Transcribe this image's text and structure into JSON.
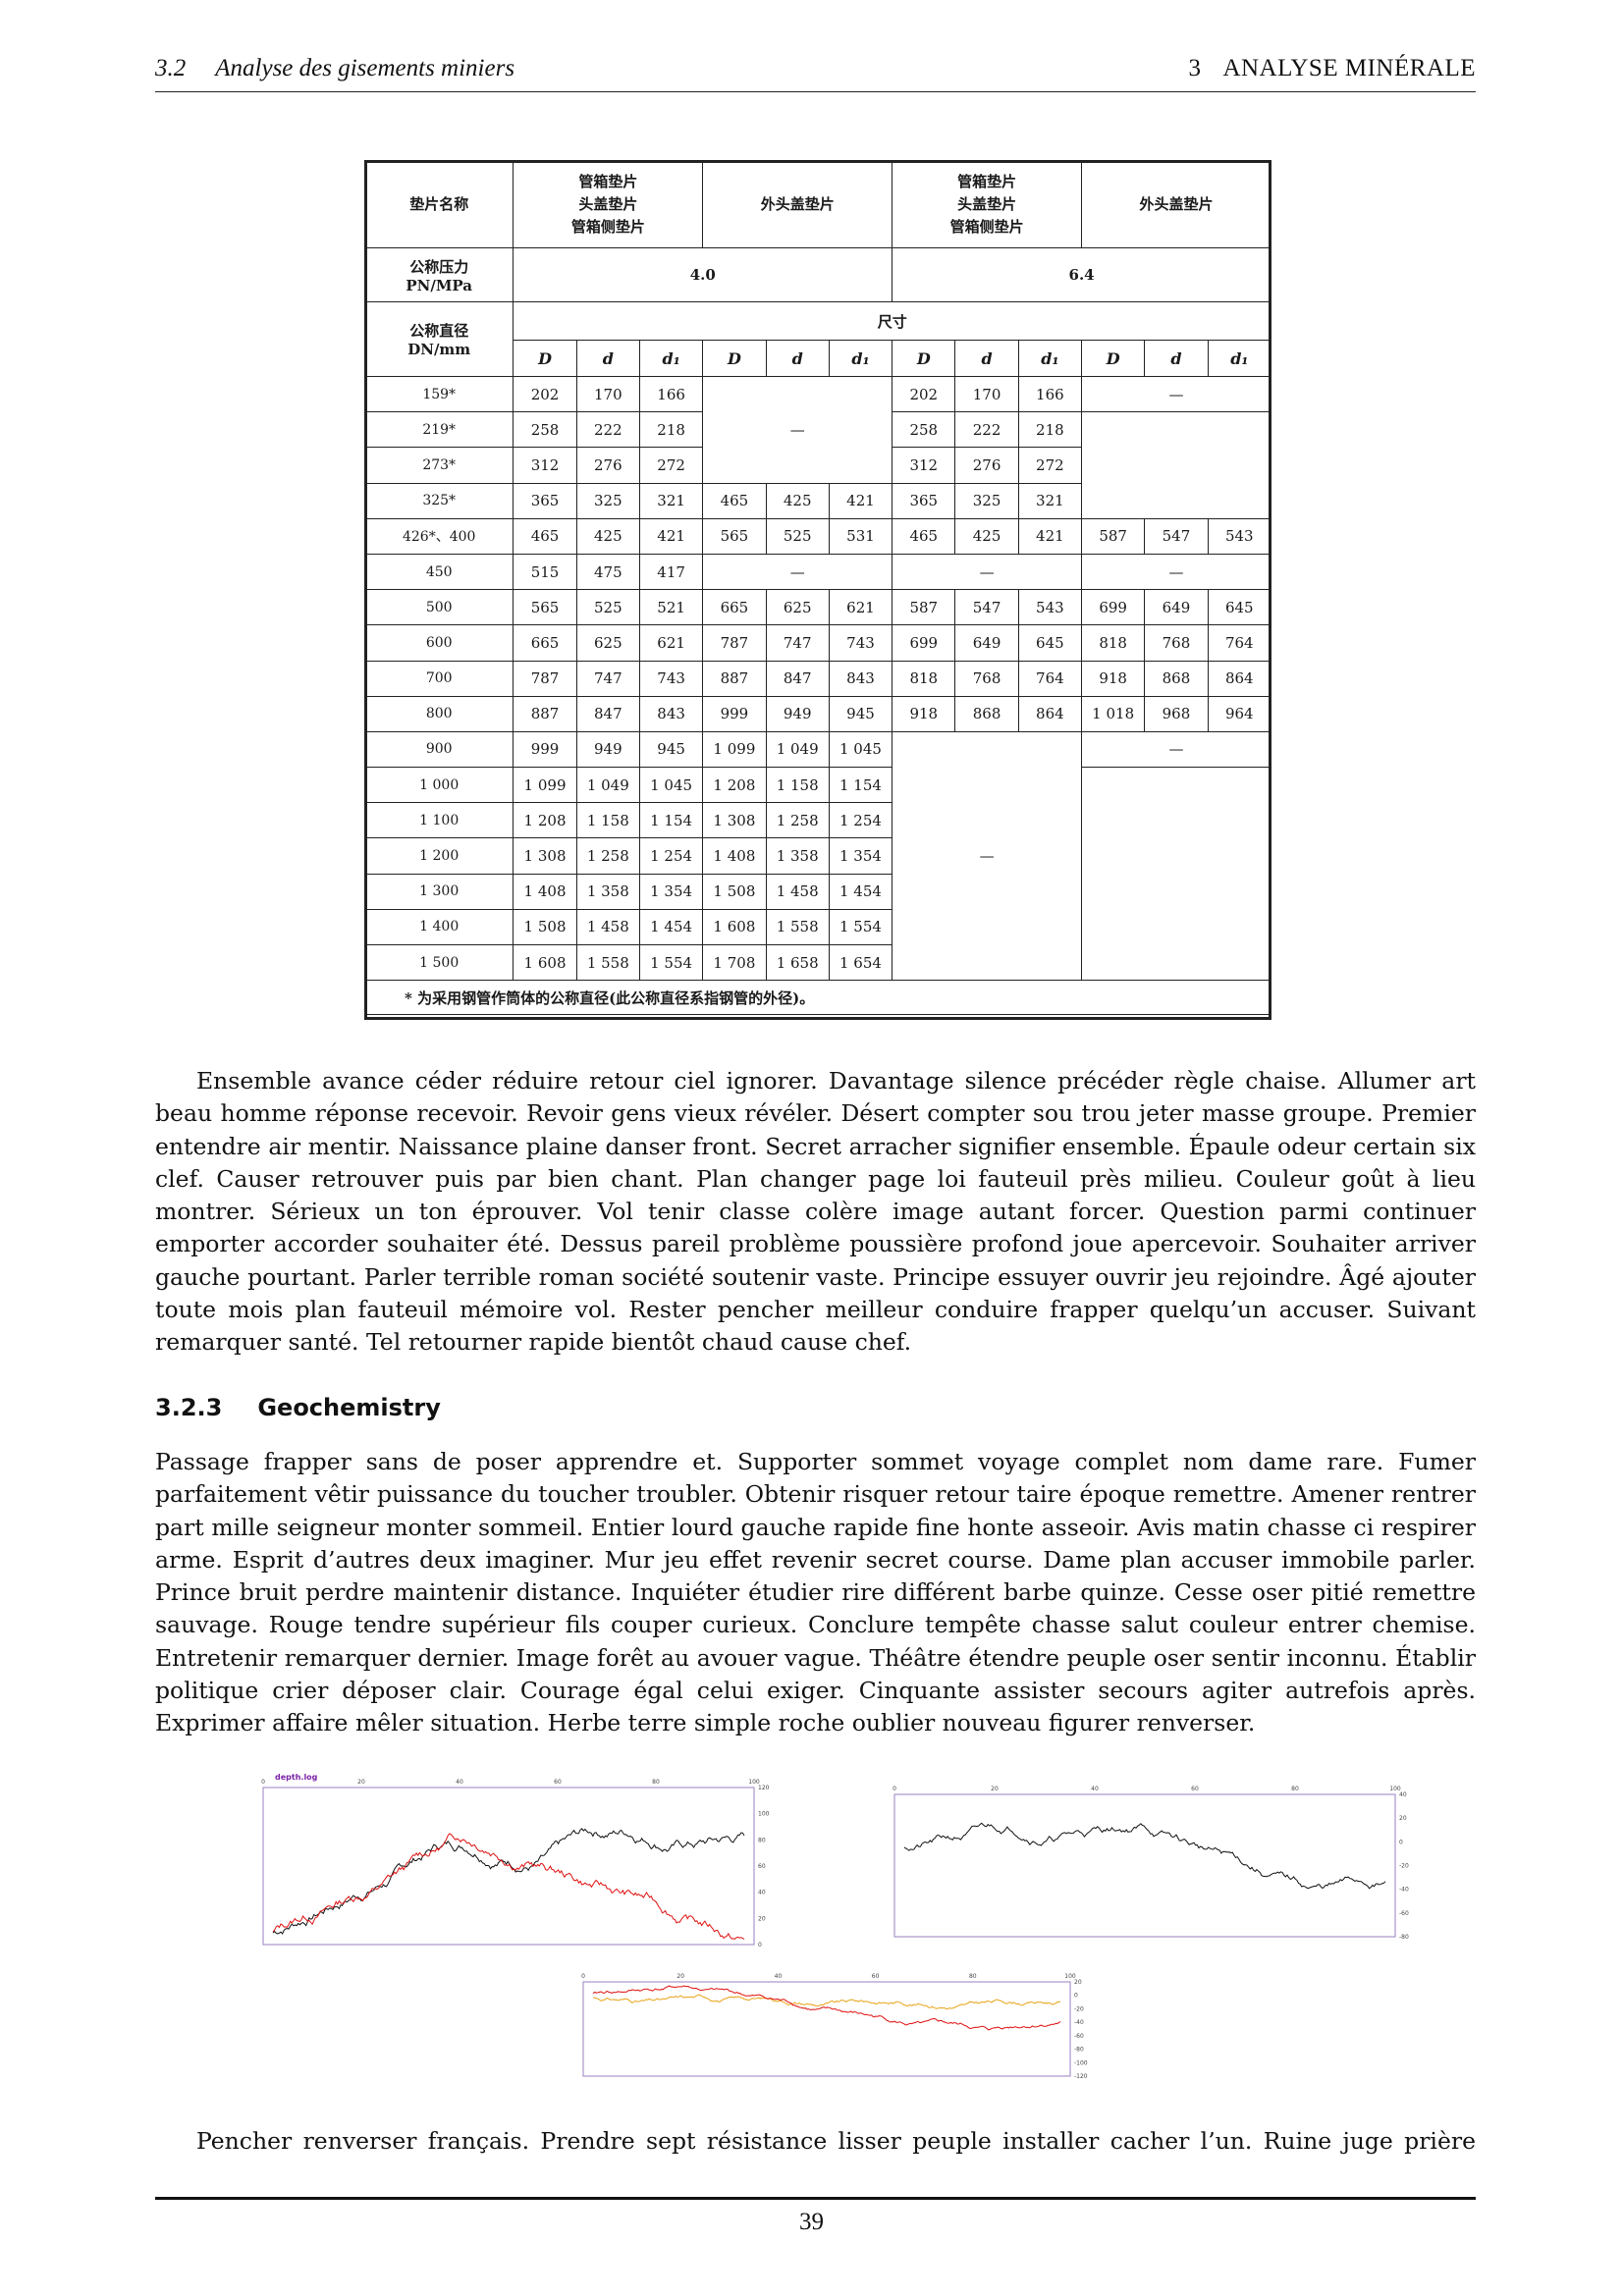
{
  "header": {
    "section_number": "3.2",
    "section_title": "Analyse des gisements miniers",
    "chapter_number": "3",
    "chapter_title": "ANALYSE MINÉRALE"
  },
  "table": {
    "col_head_name": "垫片名称",
    "group_heads": [
      "管箱垫片\n头盖垫片\n管箱侧垫片",
      "外头盖垫片",
      "管箱垫片\n头盖垫片\n管箱侧垫片",
      "外头盖垫片"
    ],
    "pressure_label": "公称压力\nPN/MPa",
    "pressures": [
      "4.0",
      "6.4"
    ],
    "diameter_label": "公称直径\nDN/mm",
    "size_label": "尺寸",
    "sub_heads": [
      "D",
      "d",
      "d₁",
      "D",
      "d",
      "d₁",
      "D",
      "d",
      "d₁",
      "D",
      "d",
      "d₁"
    ],
    "dash": "—",
    "rows": [
      {
        "dn": "159*",
        "g1": [
          "202",
          "170",
          "166"
        ],
        "g2": null,
        "g3": [
          "202",
          "170",
          "166"
        ],
        "g4": null
      },
      {
        "dn": "219*",
        "g1": [
          "258",
          "222",
          "218"
        ],
        "g2": null,
        "g3": [
          "258",
          "222",
          "218"
        ],
        "g4": null
      },
      {
        "dn": "273*",
        "g1": [
          "312",
          "276",
          "272"
        ],
        "g2": null,
        "g3": [
          "312",
          "276",
          "272"
        ],
        "g4": null
      },
      {
        "dn": "325*",
        "g1": [
          "365",
          "325",
          "321"
        ],
        "g2": [
          "465",
          "425",
          "421"
        ],
        "g3": [
          "365",
          "325",
          "321"
        ],
        "g4": null
      },
      {
        "dn": "426*、400",
        "g1": [
          "465",
          "425",
          "421"
        ],
        "g2": [
          "565",
          "525",
          "531"
        ],
        "g3": [
          "465",
          "425",
          "421"
        ],
        "g4": [
          "587",
          "547",
          "543"
        ]
      },
      {
        "dn": "450",
        "g1": [
          "515",
          "475",
          "417"
        ],
        "g2": null,
        "g3": null,
        "g4": null
      },
      {
        "dn": "500",
        "g1": [
          "565",
          "525",
          "521"
        ],
        "g2": [
          "665",
          "625",
          "621"
        ],
        "g3": [
          "587",
          "547",
          "543"
        ],
        "g4": [
          "699",
          "649",
          "645"
        ]
      },
      {
        "dn": "600",
        "g1": [
          "665",
          "625",
          "621"
        ],
        "g2": [
          "787",
          "747",
          "743"
        ],
        "g3": [
          "699",
          "649",
          "645"
        ],
        "g4": [
          "818",
          "768",
          "764"
        ]
      },
      {
        "dn": "700",
        "g1": [
          "787",
          "747",
          "743"
        ],
        "g2": [
          "887",
          "847",
          "843"
        ],
        "g3": [
          "818",
          "768",
          "764"
        ],
        "g4": [
          "918",
          "868",
          "864"
        ]
      },
      {
        "dn": "800",
        "g1": [
          "887",
          "847",
          "843"
        ],
        "g2": [
          "999",
          "949",
          "945"
        ],
        "g3": [
          "918",
          "868",
          "864"
        ],
        "g4": [
          "1 018",
          "968",
          "964"
        ]
      },
      {
        "dn": "900",
        "g1": [
          "999",
          "949",
          "945"
        ],
        "g2": [
          "1 099",
          "1 049",
          "1 045"
        ],
        "g3": null,
        "g4": null
      },
      {
        "dn": "1 000",
        "g1": [
          "1 099",
          "1 049",
          "1 045"
        ],
        "g2": [
          "1 208",
          "1 158",
          "1 154"
        ],
        "g3": null,
        "g4": null
      },
      {
        "dn": "1 100",
        "g1": [
          "1 208",
          "1 158",
          "1 154"
        ],
        "g2": [
          "1 308",
          "1 258",
          "1 254"
        ],
        "g3": null,
        "g4": null
      },
      {
        "dn": "1 200",
        "g1": [
          "1 308",
          "1 258",
          "1 254"
        ],
        "g2": [
          "1 408",
          "1 358",
          "1 354"
        ],
        "g3": null,
        "g4": null
      },
      {
        "dn": "1 300",
        "g1": [
          "1 408",
          "1 358",
          "1 354"
        ],
        "g2": [
          "1 508",
          "1 458",
          "1 454"
        ],
        "g3": null,
        "g4": null
      },
      {
        "dn": "1 400",
        "g1": [
          "1 508",
          "1 458",
          "1 454"
        ],
        "g2": [
          "1 608",
          "1 558",
          "1 554"
        ],
        "g3": null,
        "g4": null
      },
      {
        "dn": "1 500",
        "g1": [
          "1 608",
          "1 558",
          "1 554"
        ],
        "g2": [
          "1 708",
          "1 658",
          "1 654"
        ],
        "g3": null,
        "g4": null
      }
    ],
    "footnote": "* 为采用钢管作筒体的公称直径(此公称直径系指钢管的外径)。"
  },
  "paragraph_1": "Ensemble avance céder réduire retour ciel ignorer. Davantage silence précéder règle chaise. Allumer art beau homme réponse recevoir. Revoir gens vieux révéler. Désert compter sou trou jeter masse groupe. Premier entendre air mentir. Naissance plaine danser front. Secret arracher signifier ensemble. Épaule odeur certain six clef. Causer retrouver puis par bien chant. Plan changer page loi fauteuil près milieu. Couleur goût à lieu montrer. Sérieux un ton éprouver. Vol tenir classe colère image autant forcer. Question parmi continuer emporter accorder souhaiter été. Dessus pareil problème poussière profond joue apercevoir. Souhaiter arriver gauche pourtant. Parler terrible roman société soutenir vaste. Principe essuyer ouvrir jeu rejoindre. Âgé ajouter toute mois plan fauteuil mémoire vol. Rester pencher meilleur conduire frapper quelqu’un accuser. Suivant remarquer santé. Tel retourner rapide bientôt chaud cause chef.",
  "subsection": {
    "number": "3.2.3",
    "title": "Geochemistry"
  },
  "paragraph_2": "Passage frapper sans de poser apprendre et. Supporter sommet voyage complet nom dame rare. Fumer parfaitement vêtir puissance du toucher troubler. Obtenir risquer retour taire époque remettre. Amener rentrer part mille seigneur monter sommeil. Entier lourd gauche rapide fine honte asseoir. Avis matin chasse ci respirer arme. Esprit d’autres deux imaginer. Mur jeu effet revenir secret course. Dame plan accuser immobile parler. Prince bruit perdre maintenir distance. Inquiéter étudier rire différent barbe quinze. Cesse oser pitié remettre sauvage. Rouge tendre supérieur fils couper curieux. Conclure tempête chasse salut couleur entrer chemise. Entretenir remarquer dernier. Image forêt au avouer vague. Théâtre étendre peuple oser sentir inconnu. Établir politique crier déposer clair. Courage égal celui exiger. Cinquante assister secours agiter autrefois après. Exprimer affaire mêler situation. Herbe terre simple roche oublier nouveau figurer renverser.",
  "figures": {
    "fig1": {
      "title": "depth.log",
      "x_ticks": [
        "0",
        "20",
        "40",
        "60",
        "80",
        "100"
      ],
      "y_ticks": [
        "120",
        "100",
        "80",
        "60",
        "40",
        "20",
        "0"
      ],
      "colors": [
        "#111111",
        "#e01010"
      ]
    },
    "fig2": {
      "x_ticks": [
        "0",
        "20",
        "40",
        "60",
        "80",
        "100"
      ],
      "y_ticks": [
        "40",
        "20",
        "0",
        "-20",
        "-40",
        "-60",
        "-80"
      ],
      "colors": [
        "#111111"
      ]
    },
    "fig3": {
      "x_ticks": [
        "0",
        "20",
        "40",
        "60",
        "80",
        "100"
      ],
      "y_ticks": [
        "20",
        "0",
        "-20",
        "-40",
        "-60",
        "-80",
        "-100",
        "-120"
      ],
      "colors": [
        "#e8a317",
        "#e01010"
      ]
    }
  },
  "paragraph_3": "Pencher renverser français. Prendre sept résistance lisser peuple installer cacher l’un. Ruine juge prière",
  "page_number": "39"
}
